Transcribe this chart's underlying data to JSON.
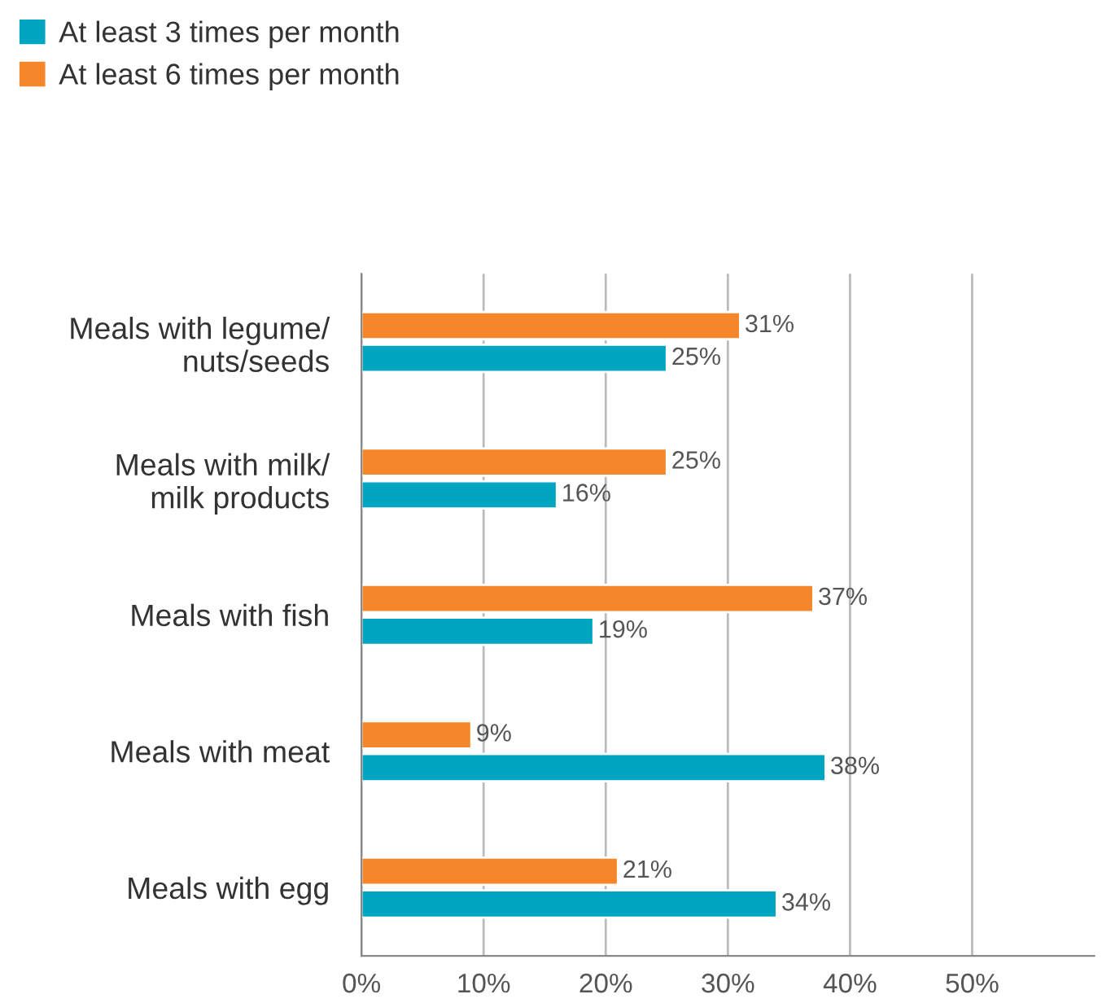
{
  "chart_data": {
    "type": "bar",
    "orientation": "horizontal",
    "categories": [
      "Meals with legume/\nnuts/seeds",
      "Meals with milk/\nmilk products",
      "Meals with fish",
      "Meals with meat",
      "Meals with egg"
    ],
    "series": [
      {
        "name": "At least 3 times per month",
        "color": "#00a5c2",
        "values": [
          25,
          16,
          19,
          38,
          34
        ],
        "value_labels": [
          "25%",
          "16%",
          "19%",
          "38%",
          "34%"
        ]
      },
      {
        "name": "At least 6 times per month",
        "color": "#f5862a",
        "values": [
          31,
          25,
          37,
          9,
          21
        ],
        "value_labels": [
          "31%",
          "25%",
          "37%",
          "9%",
          "21%"
        ]
      }
    ],
    "xlim": [
      0,
      60
    ],
    "xticks": [
      {
        "value": 0,
        "label": "0%"
      },
      {
        "value": 10,
        "label": "10%"
      },
      {
        "value": 20,
        "label": "20%"
      },
      {
        "value": 30,
        "label": "30%"
      },
      {
        "value": 40,
        "label": "40%"
      },
      {
        "value": 50,
        "label": "50%"
      }
    ],
    "grid": "x",
    "legend": "top left"
  }
}
